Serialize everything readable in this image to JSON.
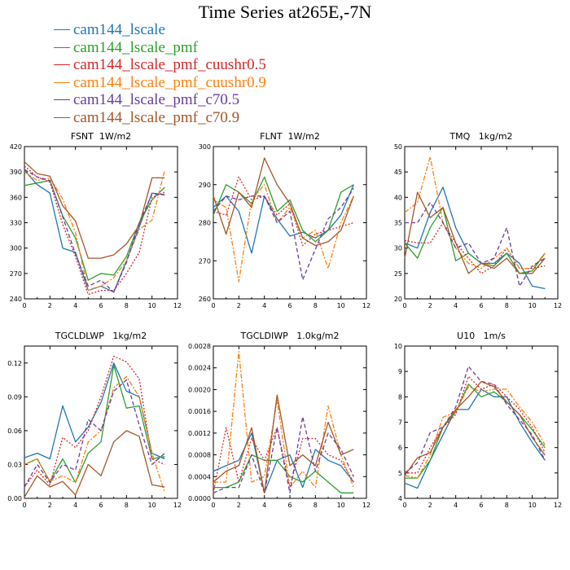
{
  "title": "Time Series at265E,-7N",
  "legend": [
    {
      "name": "cam144_lscale",
      "color": "#1f77b4",
      "dash": ""
    },
    {
      "name": "cam144_lscale_pmf",
      "color": "#2ca02c",
      "dash": ""
    },
    {
      "name": "cam144_lscale_pmf_cuushr0.5",
      "color": "#d62728",
      "dash": "2,2"
    },
    {
      "name": "cam144_lscale_pmf_cuushr0.9",
      "color": "#ff7f0e",
      "dash": "6,2,2,2"
    },
    {
      "name": "cam144_lscale_pmf_c70.5",
      "color": "#6a3d9a",
      "dash": "5,3"
    },
    {
      "name": "cam144_lscale_pmf_c70.9",
      "color": "#a65628",
      "dash": ""
    }
  ],
  "chart_data": [
    {
      "type": "line",
      "title": "FSNT  1W/m2",
      "x": [
        0,
        1,
        2,
        3,
        4,
        5,
        6,
        7,
        8,
        9,
        10,
        11
      ],
      "xlim": [
        0,
        12
      ],
      "xticks": [
        0,
        2,
        4,
        6,
        8,
        10,
        12
      ],
      "ylim": [
        240,
        420
      ],
      "yticks": [
        240,
        270,
        300,
        330,
        360,
        390,
        420
      ],
      "ytick_labels": [
        "240",
        "270",
        "300",
        "330",
        "360",
        "390",
        "420"
      ],
      "series": [
        {
          "name": "cam144_lscale",
          "values": [
            392,
            375,
            365,
            300,
            295,
            250,
            255,
            248,
            285,
            325,
            365,
            363
          ]
        },
        {
          "name": "cam144_lscale_pmf",
          "values": [
            374,
            377,
            380,
            338,
            312,
            262,
            270,
            268,
            290,
            330,
            357,
            372
          ]
        },
        {
          "name": "cam144_lscale_pmf_cuushr0.5",
          "values": [
            397,
            384,
            378,
            328,
            290,
            245,
            250,
            250,
            270,
            295,
            360,
            366
          ]
        },
        {
          "name": "cam144_lscale_pmf_cuushr0.9",
          "values": [
            390,
            380,
            383,
            358,
            318,
            250,
            255,
            265,
            285,
            322,
            333,
            392
          ]
        },
        {
          "name": "cam144_lscale_pmf_c70.5",
          "values": [
            393,
            384,
            380,
            337,
            293,
            255,
            262,
            248,
            283,
            330,
            364,
            363
          ]
        },
        {
          "name": "cam144_lscale_pmf_c70.9",
          "values": [
            402,
            388,
            385,
            350,
            332,
            288,
            288,
            292,
            305,
            327,
            383,
            383
          ]
        }
      ]
    },
    {
      "type": "line",
      "title": "FLNT  1W/m2",
      "x": [
        0,
        1,
        2,
        3,
        4,
        5,
        6,
        7,
        8,
        9,
        10,
        11
      ],
      "xlim": [
        0,
        12
      ],
      "xticks": [
        0,
        2,
        4,
        6,
        8,
        10,
        12
      ],
      "ylim": [
        260,
        300
      ],
      "yticks": [
        260,
        270,
        280,
        290,
        300
      ],
      "ytick_labels": [
        "260",
        "270",
        "280",
        "290",
        "300"
      ],
      "series": [
        {
          "name": "cam144_lscale",
          "values": [
            284,
            287,
            283,
            272,
            287,
            281,
            276.5,
            277.5,
            276,
            278,
            282,
            290
          ]
        },
        {
          "name": "cam144_lscale_pmf",
          "values": [
            282,
            290,
            288,
            285,
            292,
            283,
            286,
            278,
            275,
            278,
            288,
            290
          ]
        },
        {
          "name": "cam144_lscale_pmf_cuushr0.5",
          "values": [
            283,
            282,
            292,
            286,
            287,
            282,
            285,
            274,
            277,
            278,
            279,
            280
          ]
        },
        {
          "name": "cam144_lscale_pmf_cuushr0.9",
          "values": [
            286,
            284,
            264.5,
            286,
            290,
            280,
            284,
            276,
            278,
            268,
            280,
            287
          ]
        },
        {
          "name": "cam144_lscale_pmf_c70.5",
          "values": [
            283,
            287,
            286,
            287,
            287,
            280,
            283,
            265,
            273,
            281,
            284,
            289
          ]
        },
        {
          "name": "cam144_lscale_pmf_c70.9",
          "values": [
            287,
            277,
            288,
            284,
            297,
            290,
            285,
            276,
            274,
            275,
            278,
            287
          ]
        }
      ]
    },
    {
      "type": "line",
      "title": "TMQ   1kg/m2",
      "x": [
        0,
        1,
        2,
        3,
        4,
        5,
        6,
        7,
        8,
        9,
        10,
        11
      ],
      "xlim": [
        0,
        12
      ],
      "xticks": [
        0,
        2,
        4,
        6,
        8,
        10,
        12
      ],
      "ylim": [
        20,
        50
      ],
      "yticks": [
        20,
        25,
        30,
        35,
        40,
        45,
        50
      ],
      "ytick_labels": [
        "20",
        "25",
        "30",
        "35",
        "40",
        "45",
        "50"
      ],
      "series": [
        {
          "name": "cam144_lscale",
          "values": [
            31,
            30,
            37,
            42,
            34,
            29,
            27,
            27,
            29,
            27,
            22.5,
            22
          ]
        },
        {
          "name": "cam144_lscale_pmf",
          "values": [
            31,
            28,
            34,
            38,
            27.5,
            29,
            27,
            26.5,
            29,
            25,
            25.5,
            29
          ]
        },
        {
          "name": "cam144_lscale_pmf_cuushr0.5",
          "values": [
            31.5,
            31,
            31,
            35,
            31,
            28,
            25,
            26.5,
            30,
            26,
            26,
            26.5
          ]
        },
        {
          "name": "cam144_lscale_pmf_cuushr0.9",
          "values": [
            37,
            39,
            48,
            35,
            30,
            27,
            26,
            28,
            30,
            26,
            26,
            29
          ]
        },
        {
          "name": "cam144_lscale_pmf_c70.5",
          "values": [
            35,
            35,
            39,
            35,
            30,
            31,
            27,
            28,
            34,
            22.5,
            26.5,
            28
          ]
        },
        {
          "name": "cam144_lscale_pmf_c70.9",
          "values": [
            28,
            41,
            36,
            38,
            31,
            25,
            27,
            26,
            28,
            25,
            25,
            28
          ]
        }
      ]
    },
    {
      "type": "line",
      "title": "TGCLDLWP   1kg/m2",
      "x": [
        0,
        1,
        2,
        3,
        4,
        5,
        6,
        7,
        8,
        9,
        10,
        11
      ],
      "xlim": [
        0,
        12
      ],
      "xticks": [
        0,
        2,
        4,
        6,
        8,
        10,
        12
      ],
      "ylim": [
        0,
        0.135
      ],
      "yticks": [
        0,
        0.03,
        0.06,
        0.09,
        0.12
      ],
      "ytick_labels": [
        "0.00",
        "0.03",
        "0.06",
        "0.09",
        "0.12"
      ],
      "series": [
        {
          "name": "cam144_lscale",
          "values": [
            0.036,
            0.04,
            0.035,
            0.082,
            0.05,
            0.063,
            0.085,
            0.12,
            0.095,
            0.09,
            0.04,
            0.035
          ]
        },
        {
          "name": "cam144_lscale_pmf",
          "values": [
            0.03,
            0.035,
            0.015,
            0.035,
            0.014,
            0.04,
            0.05,
            0.118,
            0.08,
            0.082,
            0.035,
            0.037
          ]
        },
        {
          "name": "cam144_lscale_pmf_cuushr0.5",
          "values": [
            0.01,
            0.025,
            0.012,
            0.054,
            0.045,
            0.06,
            0.09,
            0.126,
            0.121,
            0.106,
            0.035,
            0.03
          ]
        },
        {
          "name": "cam144_lscale_pmf_cuushr0.9",
          "values": [
            0.03,
            0.035,
            0.015,
            0.02,
            0.014,
            0.05,
            0.06,
            0.098,
            0.108,
            0.09,
            0.04,
            0.005
          ]
        },
        {
          "name": "cam144_lscale_pmf_c70.5",
          "values": [
            0.01,
            0.03,
            0.014,
            0.03,
            0.025,
            0.07,
            0.06,
            0.095,
            0.105,
            0.065,
            0.03,
            0.04
          ]
        },
        {
          "name": "cam144_lscale_pmf_c70.9",
          "values": [
            0.001,
            0.02,
            0.01,
            0.015,
            0.003,
            0.03,
            0.02,
            0.05,
            0.06,
            0.055,
            0.012,
            0.01
          ]
        }
      ]
    },
    {
      "type": "line",
      "title": "TGCLDIWP   1.0kg/m2",
      "x": [
        0,
        1,
        2,
        3,
        4,
        5,
        6,
        7,
        8,
        9,
        10,
        11
      ],
      "xlim": [
        0,
        12
      ],
      "xticks": [
        0,
        2,
        4,
        6,
        8,
        10,
        12
      ],
      "ylim": [
        0,
        0.0028
      ],
      "yticks": [
        0,
        0.0004,
        0.0008,
        0.0012,
        0.0016,
        0.002,
        0.0024,
        0.0028
      ],
      "ytick_labels": [
        "0.0000",
        "0.0004",
        "0.0008",
        "0.0012",
        "0.0016",
        "0.0020",
        "0.0024",
        "0.0028"
      ],
      "series": [
        {
          "name": "cam144_lscale",
          "values": [
            0.0005,
            0.0006,
            0.0007,
            0.0012,
            0.0001,
            0.0007,
            0.0008,
            0.0002,
            0.0009,
            0.0007,
            0.0006,
            0.0003
          ]
        },
        {
          "name": "cam144_lscale_pmf",
          "values": [
            0.0002,
            0.0002,
            0.0003,
            0.0008,
            0.0007,
            0.0007,
            0.0004,
            0.0003,
            0.0005,
            0.0003,
            0.0001,
            0.0001
          ]
        },
        {
          "name": "cam144_lscale_pmf_cuushr0.5",
          "values": [
            0.0001,
            0.0013,
            0.0003,
            0.0011,
            0.0007,
            0.0013,
            0.0002,
            0.0011,
            0.0011,
            0.0008,
            0.0007,
            0.0003
          ]
        },
        {
          "name": "cam144_lscale_pmf_cuushr0.9",
          "values": [
            0.0003,
            0.0003,
            0.0027,
            0.0003,
            0.0004,
            0.0018,
            0.0002,
            0.0005,
            0.0002,
            0.0017,
            0.0008,
            0.0002
          ]
        },
        {
          "name": "cam144_lscale_pmf_c70.5",
          "values": [
            0.0001,
            0.0002,
            0.0002,
            0.0008,
            0.0001,
            0.0013,
            0.0001,
            0.0015,
            0.0005,
            0.0012,
            0.0009,
            0.0004
          ]
        },
        {
          "name": "cam144_lscale_pmf_c70.9",
          "values": [
            0.0003,
            0.0005,
            0.0006,
            0.0013,
            0.0001,
            0.0019,
            0.0006,
            0.0008,
            0.0006,
            0.0014,
            0.0008,
            0.0009
          ]
        }
      ]
    },
    {
      "type": "line",
      "title": "U10   1m/s",
      "x": [
        0,
        1,
        2,
        3,
        4,
        5,
        6,
        7,
        8,
        9,
        10,
        11
      ],
      "xlim": [
        0,
        12
      ],
      "xticks": [
        0,
        2,
        4,
        6,
        8,
        10,
        12
      ],
      "ylim": [
        4,
        10
      ],
      "yticks": [
        4,
        5,
        6,
        7,
        8,
        9,
        10
      ],
      "ytick_labels": [
        "4",
        "5",
        "6",
        "7",
        "8",
        "9",
        "10"
      ],
      "series": [
        {
          "name": "cam144_lscale",
          "values": [
            4.6,
            4.4,
            5.5,
            6.5,
            7.5,
            7.5,
            8.3,
            8.0,
            8.0,
            7.0,
            6.2,
            5.5
          ]
        },
        {
          "name": "cam144_lscale_pmf",
          "values": [
            4.8,
            4.8,
            5.5,
            6.8,
            7.4,
            8.5,
            8.0,
            8.2,
            7.8,
            7.3,
            6.7,
            6.0
          ]
        },
        {
          "name": "cam144_lscale_pmf_cuushr0.5",
          "values": [
            5.0,
            5.0,
            6.0,
            6.8,
            7.3,
            8.8,
            8.3,
            8.5,
            8.0,
            7.5,
            6.8,
            5.8
          ]
        },
        {
          "name": "cam144_lscale_pmf_cuushr0.9",
          "values": [
            4.9,
            4.8,
            5.7,
            7.2,
            7.4,
            8.4,
            8.2,
            8.3,
            8.3,
            7.6,
            7.0,
            6.1
          ]
        },
        {
          "name": "cam144_lscale_pmf_c70.5",
          "values": [
            5.0,
            5.4,
            6.6,
            6.8,
            7.6,
            9.2,
            8.6,
            8.5,
            7.7,
            7.1,
            6.5,
            5.5
          ]
        },
        {
          "name": "cam144_lscale_pmf_c70.9",
          "values": [
            4.9,
            5.6,
            5.8,
            6.8,
            7.5,
            8.0,
            8.6,
            8.4,
            7.8,
            7.3,
            6.4,
            5.7
          ]
        }
      ]
    }
  ]
}
